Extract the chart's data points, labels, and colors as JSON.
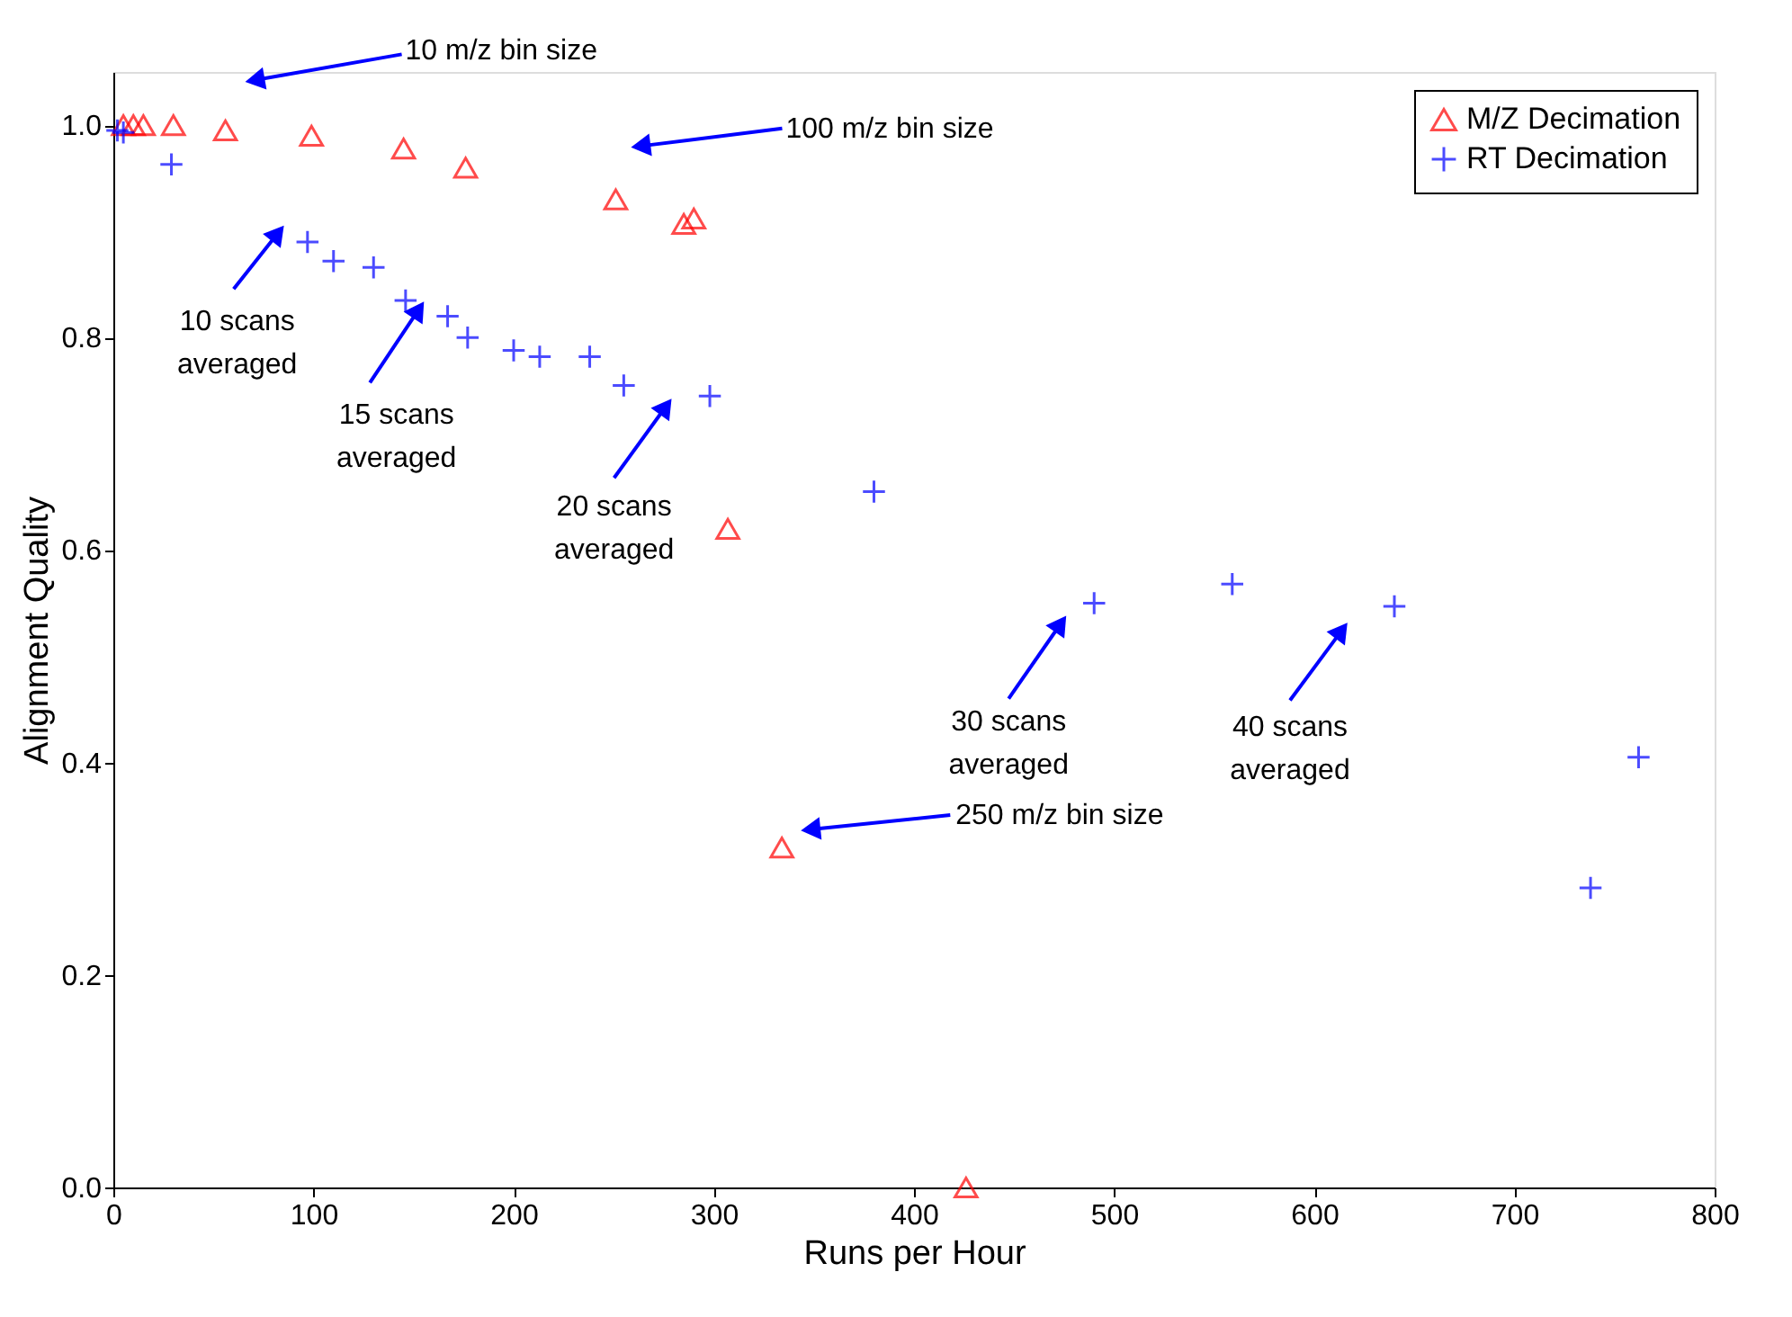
{
  "chart_data": {
    "type": "scatter",
    "xlabel": "Runs per Hour",
    "ylabel": "Alignment Quality",
    "xlim": [
      0,
      800
    ],
    "ylim": [
      0,
      1.05
    ],
    "xticks": [
      0,
      100,
      200,
      300,
      400,
      500,
      600,
      700,
      800
    ],
    "yticks": [
      {
        "value": 0,
        "label": "0.0"
      },
      0.2,
      0.4,
      0.6,
      0.8,
      {
        "value": 1,
        "label": "1.0"
      }
    ],
    "grid": false,
    "legend": "top right",
    "series": [
      {
        "name": "M/Z Decimation",
        "color": "#ff0000",
        "marker": "triangle",
        "x": [
          5,
          10,
          15,
          30,
          56,
          99,
          145,
          176,
          251,
          285,
          290,
          307,
          334,
          426
        ],
        "values": [
          1.0,
          1.0,
          1.0,
          1.0,
          0.995,
          0.99,
          0.978,
          0.96,
          0.93,
          0.907,
          0.912,
          0.62,
          0.32,
          0.0
        ]
      },
      {
        "name": "RT Decimation",
        "color": "#0000ff",
        "marker": "cross",
        "x": [
          2,
          5,
          29,
          97,
          110,
          130,
          146,
          167,
          177,
          200,
          213,
          238,
          255,
          298,
          380,
          490,
          559,
          640,
          738,
          762
        ],
        "values": [
          0.995,
          0.993,
          0.963,
          0.89,
          0.872,
          0.866,
          0.835,
          0.82,
          0.8,
          0.788,
          0.782,
          0.782,
          0.755,
          0.745,
          0.655,
          0.55,
          0.568,
          0.547,
          0.282,
          0.405
        ]
      }
    ],
    "annotations": [
      "10 m/z bin size",
      "100 m/z bin size",
      "250 m/z bin size",
      "10 scans\naveraged",
      "15 scans\naveraged",
      "20 scans\naveraged",
      "30 scans\naveraged",
      "40 scans\naveraged"
    ]
  }
}
